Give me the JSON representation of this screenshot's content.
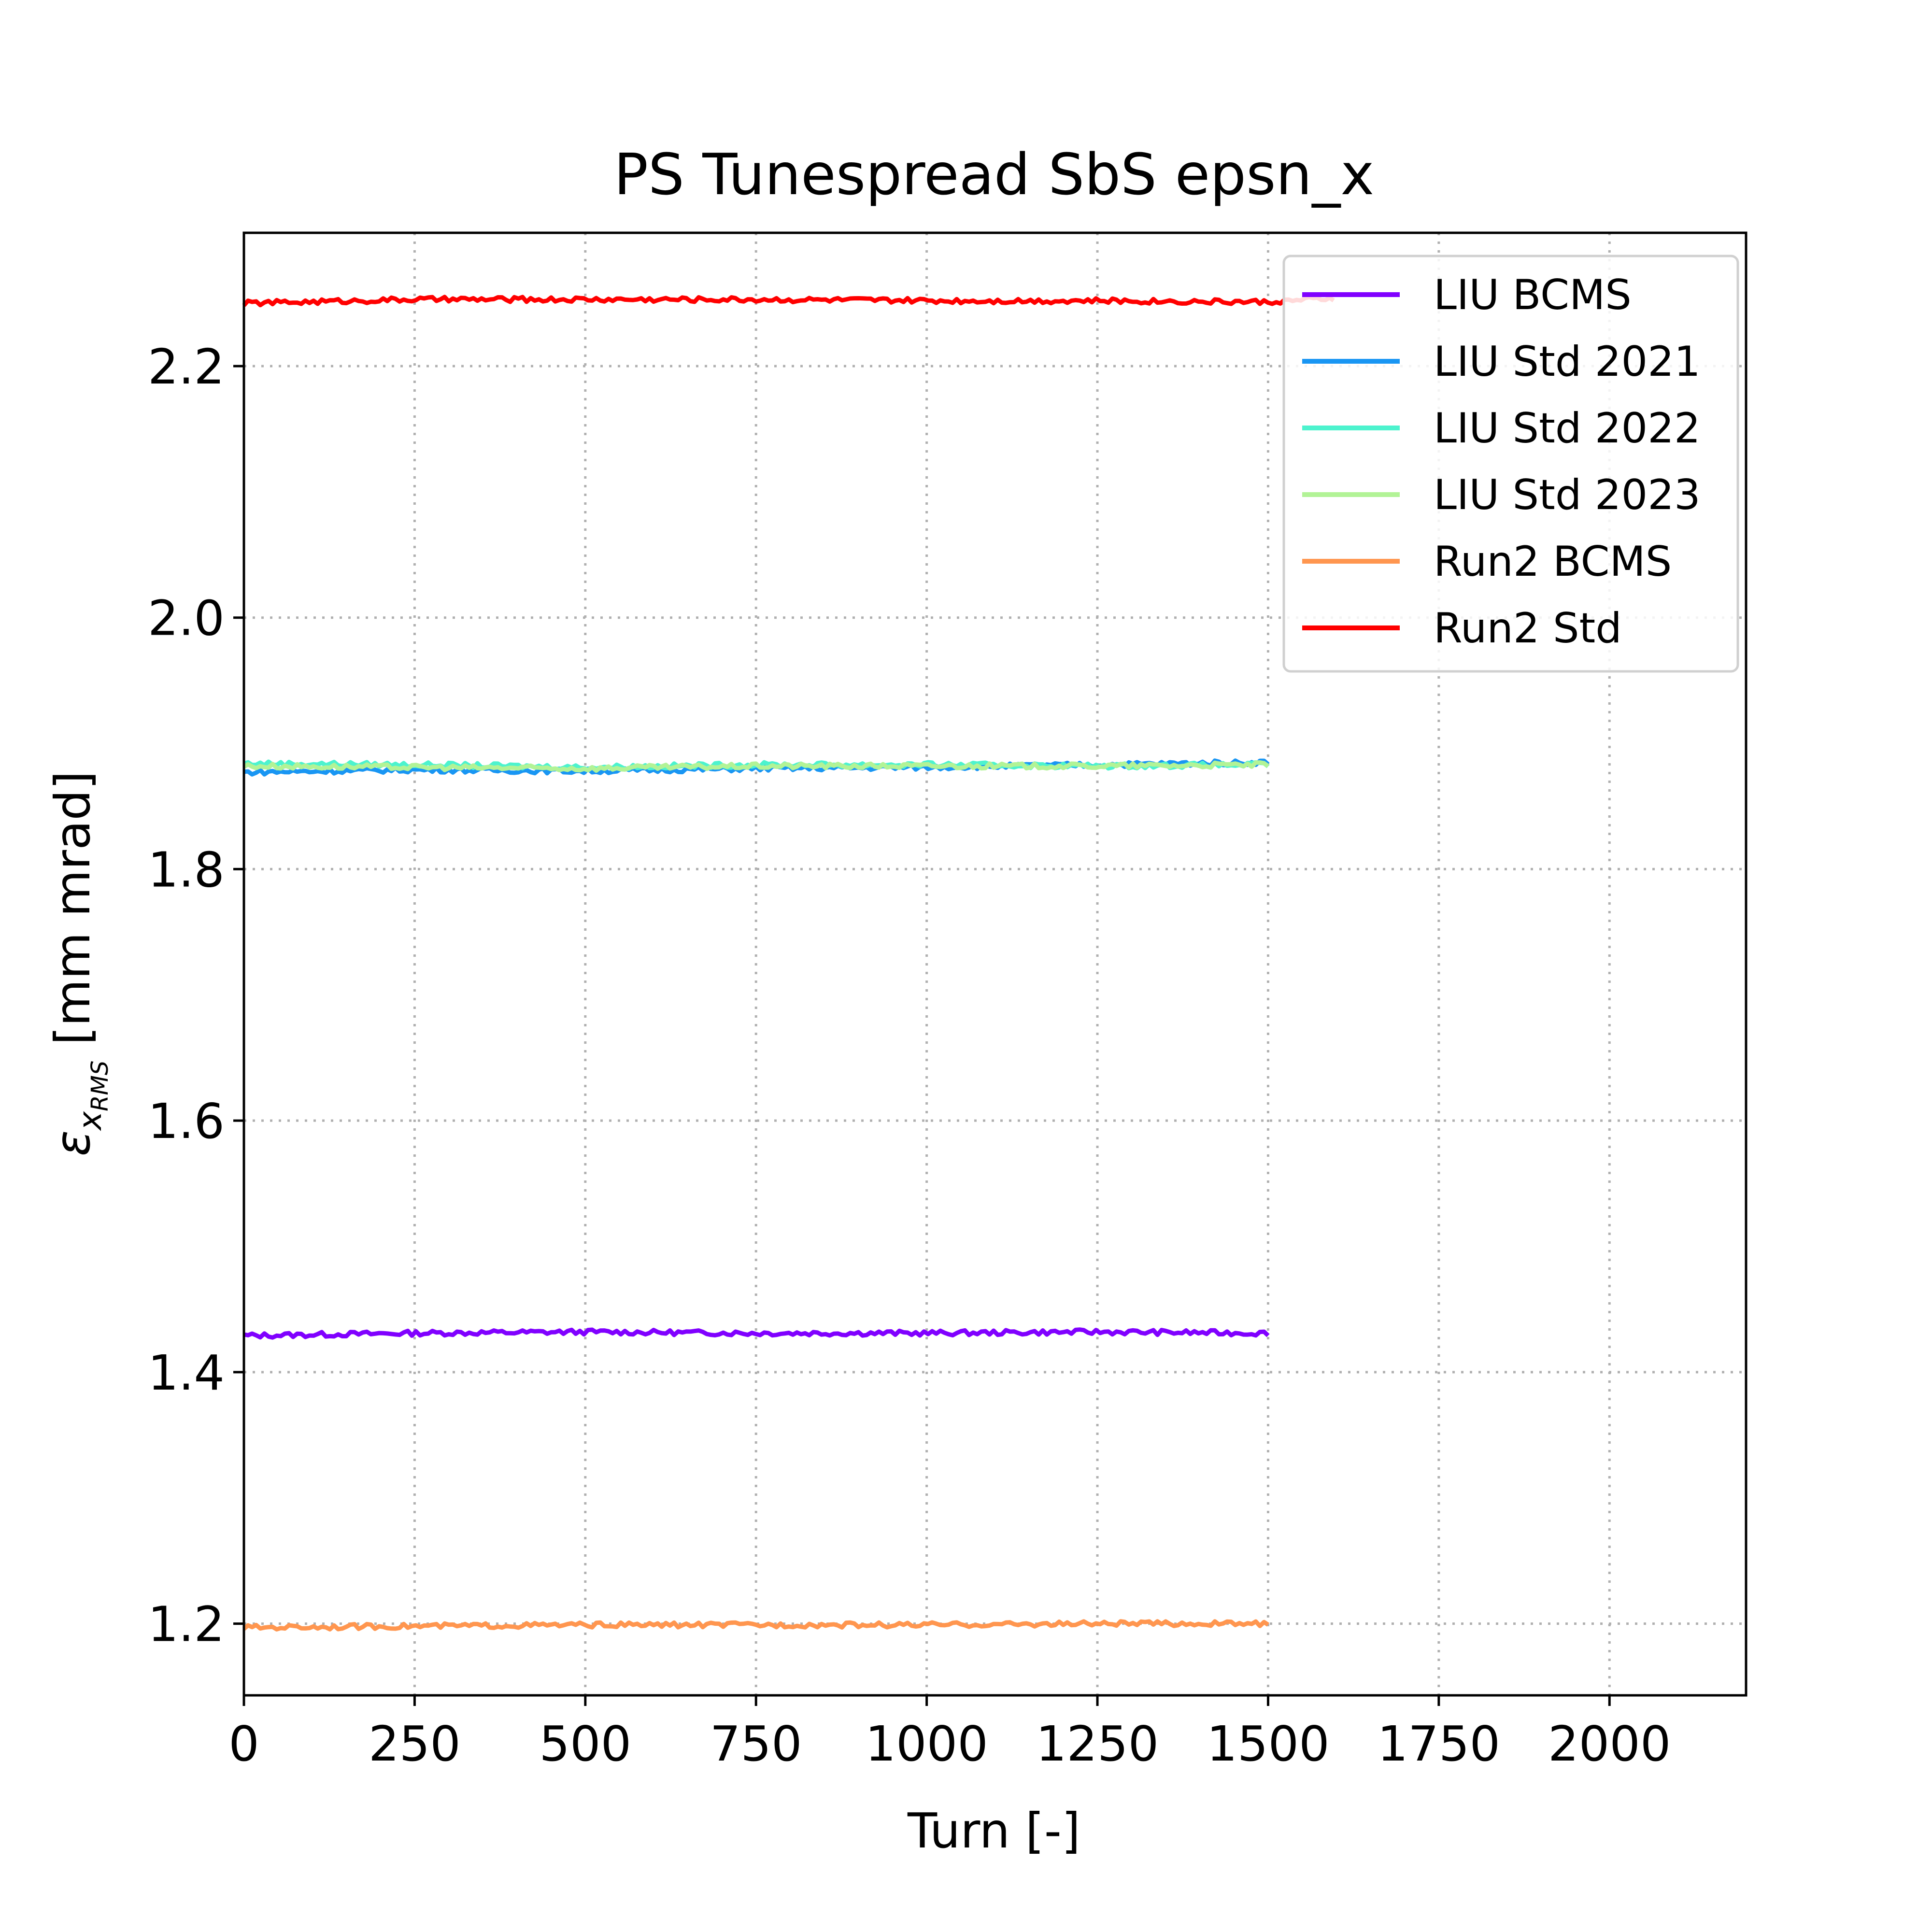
{
  "chart_data": {
    "type": "line",
    "title": "PS Tunespread SbS epsn_x",
    "xlabel": "Turn [-]",
    "ylabel_symbol": "ε",
    "ylabel_subscript": "x",
    "ylabel_subsubscript": "RMS",
    "ylabel_units": " [mm mrad]",
    "xlim": [
      0,
      2200
    ],
    "ylim": [
      1.143,
      2.306
    ],
    "x_ticks": [
      0,
      250,
      500,
      750,
      1000,
      1250,
      1500,
      1750,
      2000
    ],
    "x_tick_labels": [
      "0",
      "250",
      "500",
      "750",
      "1000",
      "1250",
      "1500",
      "1750",
      "2000"
    ],
    "y_ticks": [
      1.2,
      1.4,
      1.6,
      1.8,
      2.0,
      2.2
    ],
    "y_tick_labels": [
      "1.2",
      "1.4",
      "1.6",
      "1.8",
      "2.0",
      "2.2"
    ],
    "grid": true,
    "legend_position": "top-right",
    "series": [
      {
        "name": "LIU BCMS",
        "color": "#8000ff",
        "x": [
          0,
          250,
          500,
          750,
          1000,
          1250,
          1500
        ],
        "y": [
          1.429,
          1.431,
          1.432,
          1.431,
          1.431,
          1.432,
          1.431
        ]
      },
      {
        "name": "LIU Std 2021",
        "color": "#1996f3",
        "x": [
          0,
          250,
          500,
          750,
          1000,
          1250,
          1500
        ],
        "y": [
          1.877,
          1.879,
          1.878,
          1.88,
          1.881,
          1.883,
          1.885
        ]
      },
      {
        "name": "LIU Std 2022",
        "color": "#4df3ce",
        "x": [
          0,
          250,
          500,
          750,
          1000,
          1250,
          1500
        ],
        "y": [
          1.884,
          1.883,
          1.881,
          1.883,
          1.883,
          1.882,
          1.883
        ]
      },
      {
        "name": "LIU Std 2023",
        "color": "#b2f396",
        "x": [
          0,
          250,
          500,
          750,
          1000,
          1250,
          1500
        ],
        "y": [
          1.882,
          1.881,
          1.88,
          1.882,
          1.882,
          1.882,
          1.883
        ]
      },
      {
        "name": "Run2 BCMS",
        "color": "#ff964f",
        "x": [
          0,
          250,
          500,
          750,
          1000,
          1250,
          1500
        ],
        "y": [
          1.197,
          1.198,
          1.199,
          1.199,
          1.199,
          1.2,
          1.2
        ]
      },
      {
        "name": "Run2 Std",
        "color": "#ff0000",
        "x": [
          0,
          250,
          500,
          750,
          1000,
          1250,
          1500,
          1600
        ],
        "y": [
          2.25,
          2.253,
          2.253,
          2.253,
          2.252,
          2.252,
          2.251,
          2.254
        ]
      }
    ]
  }
}
